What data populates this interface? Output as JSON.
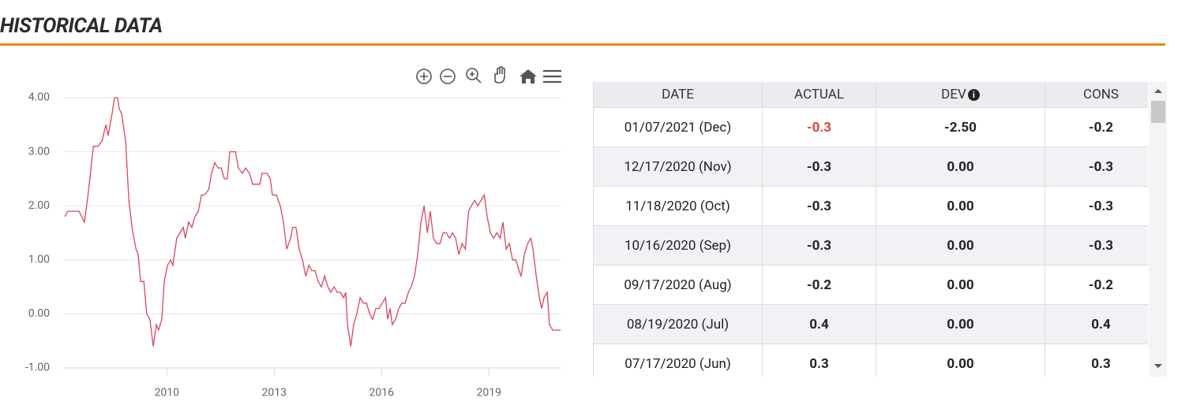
{
  "header": {
    "title": "HISTORICAL DATA"
  },
  "chart_data": {
    "type": "line",
    "color": "#d9465a",
    "grid": true,
    "xlim": [
      2007.15,
      2021.0
    ],
    "xticks": [
      2010,
      2013,
      2016,
      2019
    ],
    "ylim": [
      -1,
      4
    ],
    "yticks": [
      {
        "value": -1,
        "label": "-1.00"
      },
      {
        "value": 0,
        "label": "0.00"
      },
      {
        "value": 1,
        "label": "1.00"
      },
      {
        "value": 2,
        "label": "2.00"
      },
      {
        "value": 3,
        "label": "3.00"
      },
      {
        "value": 4,
        "label": "4.00"
      }
    ],
    "x": [
      2007.15,
      2007.24,
      2007.55,
      2007.7,
      2007.8,
      2007.95,
      2008.08,
      2008.19,
      2008.3,
      2008.36,
      2008.47,
      2008.54,
      2008.63,
      2008.67,
      2008.74,
      2008.85,
      2008.94,
      2009.03,
      2009.14,
      2009.2,
      2009.27,
      2009.36,
      2009.44,
      2009.53,
      2009.62,
      2009.71,
      2009.77,
      2009.86,
      2009.93,
      2010.02,
      2010.11,
      2010.17,
      2010.28,
      2010.46,
      2010.52,
      2010.61,
      2010.7,
      2010.79,
      2010.88,
      2010.97,
      2011.05,
      2011.17,
      2011.25,
      2011.34,
      2011.43,
      2011.52,
      2011.61,
      2011.69,
      2011.76,
      2011.92,
      2012.0,
      2012.11,
      2012.2,
      2012.31,
      2012.4,
      2012.6,
      2012.66,
      2012.8,
      2012.89,
      2012.95,
      2013.06,
      2013.17,
      2013.26,
      2013.35,
      2013.46,
      2013.52,
      2013.61,
      2013.7,
      2013.79,
      2013.88,
      2013.97,
      2014.05,
      2014.14,
      2014.23,
      2014.32,
      2014.41,
      2014.5,
      2014.58,
      2014.67,
      2014.76,
      2014.85,
      2014.94,
      2015.0,
      2015.05,
      2015.14,
      2015.22,
      2015.31,
      2015.4,
      2015.49,
      2015.58,
      2015.67,
      2015.75,
      2015.84,
      2015.93,
      2016.02,
      2016.11,
      2016.17,
      2016.24,
      2016.3,
      2016.39,
      2016.48,
      2016.57,
      2016.66,
      2016.75,
      2016.83,
      2016.92,
      2017.01,
      2017.1,
      2017.19,
      2017.28,
      2017.36,
      2017.45,
      2017.54,
      2017.63,
      2017.72,
      2017.81,
      2017.9,
      2017.98,
      2018.07,
      2018.16,
      2018.25,
      2018.34,
      2018.43,
      2018.51,
      2018.6,
      2018.69,
      2018.78,
      2018.87,
      2018.95,
      2019.04,
      2019.13,
      2019.22,
      2019.31,
      2019.39,
      2019.48,
      2019.57,
      2019.66,
      2019.75,
      2019.84,
      2019.9,
      2019.99,
      2020.08,
      2020.17,
      2020.23,
      2020.32,
      2020.41,
      2020.47,
      2020.54,
      2020.63,
      2020.69,
      2020.78,
      2021.0
    ],
    "values": [
      1.8,
      1.9,
      1.9,
      1.7,
      2.2,
      3.1,
      3.1,
      3.2,
      3.5,
      3.3,
      3.7,
      4.0,
      4.0,
      3.8,
      3.7,
      3.2,
      2.1,
      1.6,
      1.2,
      1.1,
      0.6,
      0.6,
      0.0,
      -0.1,
      -0.6,
      -0.2,
      -0.3,
      -0.1,
      0.6,
      0.9,
      1.0,
      0.9,
      1.4,
      1.6,
      1.4,
      1.7,
      1.6,
      1.8,
      1.9,
      2.2,
      2.2,
      2.3,
      2.6,
      2.8,
      2.7,
      2.7,
      2.5,
      2.5,
      3.0,
      3.0,
      2.7,
      2.6,
      2.7,
      2.6,
      2.4,
      2.4,
      2.6,
      2.6,
      2.5,
      2.2,
      2.2,
      2.0,
      1.7,
      1.2,
      1.4,
      1.6,
      1.6,
      1.2,
      1.0,
      0.7,
      0.9,
      0.8,
      0.8,
      0.6,
      0.5,
      0.7,
      0.5,
      0.4,
      0.5,
      0.4,
      0.4,
      0.3,
      0.4,
      -0.2,
      -0.6,
      -0.2,
      0.0,
      0.3,
      0.2,
      0.2,
      0.0,
      -0.1,
      0.1,
      0.1,
      0.2,
      0.3,
      -0.1,
      0.1,
      -0.2,
      -0.1,
      0.1,
      0.2,
      0.2,
      0.4,
      0.5,
      0.7,
      1.1,
      1.7,
      2.0,
      1.5,
      1.9,
      1.4,
      1.3,
      1.3,
      1.5,
      1.5,
      1.4,
      1.5,
      1.4,
      1.1,
      1.3,
      1.2,
      1.9,
      2.0,
      2.1,
      2.0,
      2.1,
      2.2,
      1.8,
      1.5,
      1.4,
      1.5,
      1.4,
      1.7,
      1.2,
      1.3,
      1.0,
      1.0,
      0.8,
      0.7,
      1.1,
      1.3,
      1.4,
      1.2,
      0.7,
      0.3,
      0.1,
      0.3,
      0.4,
      -0.2,
      -0.3,
      -0.3
    ]
  },
  "table": {
    "columns": [
      "DATE",
      "ACTUAL",
      "DEV",
      "CONS"
    ],
    "rows": [
      [
        "01/07/2021 (Dec)",
        "-0.3",
        "-2.50",
        "-0.2"
      ],
      [
        "12/17/2020 (Nov)",
        "-0.3",
        "0.00",
        "-0.3"
      ],
      [
        "11/18/2020 (Oct)",
        "-0.3",
        "0.00",
        "-0.3"
      ],
      [
        "10/16/2020 (Sep)",
        "-0.3",
        "0.00",
        "-0.3"
      ],
      [
        "09/17/2020 (Aug)",
        "-0.2",
        "0.00",
        "-0.2"
      ],
      [
        "08/19/2020 (Jul)",
        "0.4",
        "0.00",
        "0.4"
      ],
      [
        "07/17/2020 (Jun)",
        "0.3",
        "0.00",
        "0.3"
      ]
    ]
  }
}
